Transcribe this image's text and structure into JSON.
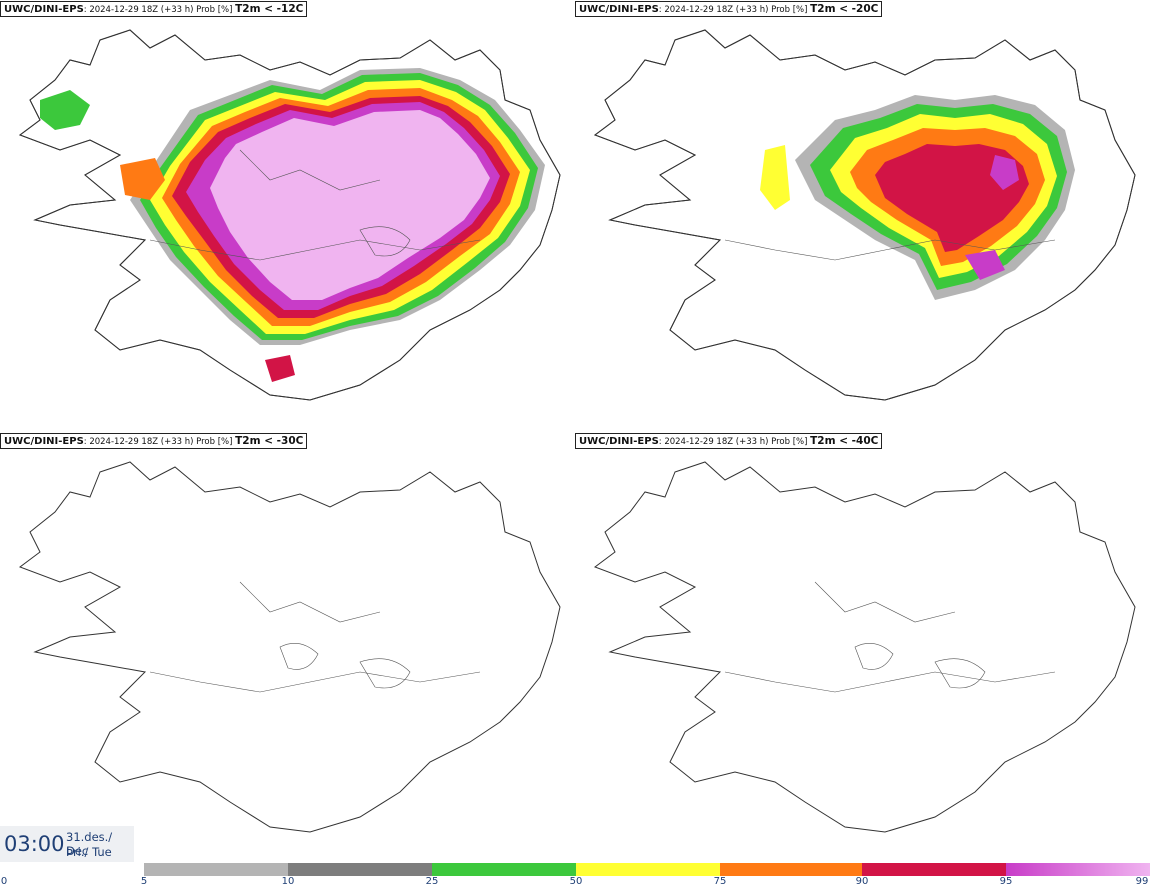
{
  "panels": [
    {
      "source": "UWC/DINI-EPS",
      "meta": ": 2024-12-29 18Z (+33 h) Prob [%] ",
      "threshold": "T2m < -12C",
      "coverage": "high"
    },
    {
      "source": "UWC/DINI-EPS",
      "meta": ": 2024-12-29 18Z (+33 h) Prob [%] ",
      "threshold": "T2m < -20C",
      "coverage": "medium"
    },
    {
      "source": "UWC/DINI-EPS",
      "meta": ": 2024-12-29 18Z (+33 h) Prob [%] ",
      "threshold": "T2m < -30C",
      "coverage": "none"
    },
    {
      "source": "UWC/DINI-EPS",
      "meta": ": 2024-12-29 18Z (+33 h) Prob [%] ",
      "threshold": "T2m < -40C",
      "coverage": "none"
    }
  ],
  "timestamp": {
    "time": "03:00",
    "date_line1": "31.des./ Dec",
    "date_line2": "Þri./ Tue"
  },
  "colorbar": {
    "ticks": [
      "0",
      "5",
      "10",
      "25",
      "50",
      "75",
      "90",
      "95",
      "99"
    ],
    "colors": [
      "#b4b4b4",
      "#7d7d7d",
      "#3cc83c",
      "#ffff33",
      "#ff7a14",
      "#d21446",
      "#c83cc8",
      "#f0b4f0"
    ]
  }
}
